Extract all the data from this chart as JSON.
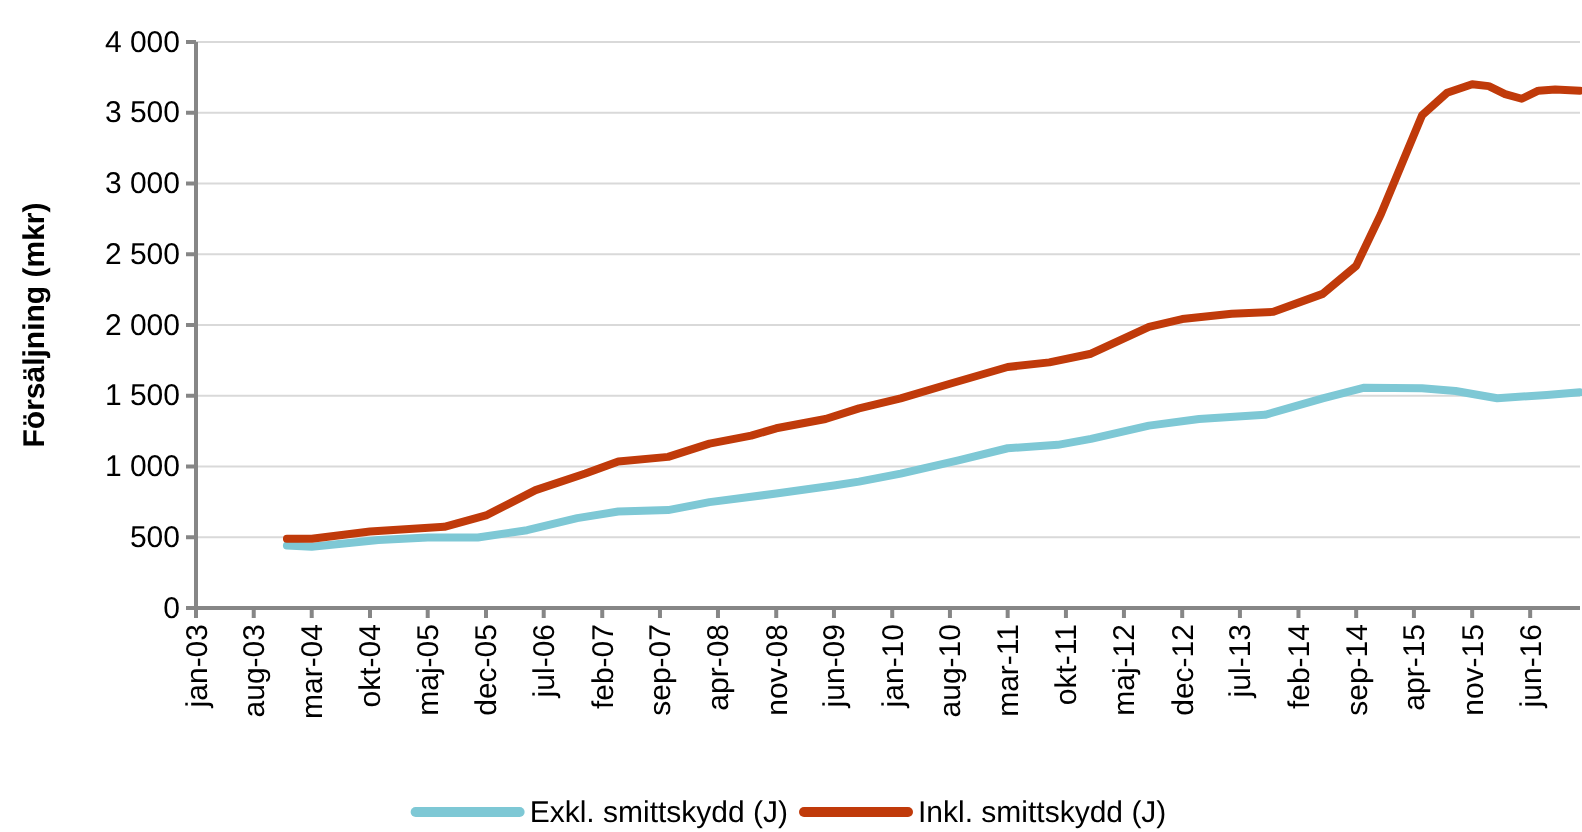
{
  "chart_data": {
    "type": "line",
    "ylabel": "Försäljning (mkr)",
    "xlim": [
      "2003-01",
      "2016-12"
    ],
    "ylim": [
      0,
      4000
    ],
    "yticks": [
      0,
      {
        "value": 500,
        "label": "500"
      },
      {
        "value": 1000,
        "label": "1 000"
      },
      {
        "value": 1500,
        "label": "1 500"
      },
      {
        "value": 2000,
        "label": "2 000"
      },
      {
        "value": 2500,
        "label": "2 500"
      },
      {
        "value": 3000,
        "label": "3 000"
      },
      {
        "value": 3500,
        "label": "3 500"
      },
      {
        "value": 4000,
        "label": "4 000"
      }
    ],
    "xticks": [
      {
        "value": "2003-01",
        "label": "jan-03"
      },
      {
        "value": "2003-08",
        "label": "aug-03"
      },
      {
        "value": "2004-03",
        "label": "mar-04"
      },
      {
        "value": "2004-10",
        "label": "okt-04"
      },
      {
        "value": "2005-05",
        "label": "maj-05"
      },
      {
        "value": "2005-12",
        "label": "dec-05"
      },
      {
        "value": "2006-07",
        "label": "jul-06"
      },
      {
        "value": "2007-02",
        "label": "feb-07"
      },
      {
        "value": "2007-09",
        "label": "sep-07"
      },
      {
        "value": "2008-04",
        "label": "apr-08"
      },
      {
        "value": "2008-11",
        "label": "nov-08"
      },
      {
        "value": "2009-06",
        "label": "jun-09"
      },
      {
        "value": "2010-01",
        "label": "jan-10"
      },
      {
        "value": "2010-08",
        "label": "aug-10"
      },
      {
        "value": "2011-03",
        "label": "mar-11"
      },
      {
        "value": "2011-10",
        "label": "okt-11"
      },
      {
        "value": "2012-05",
        "label": "maj-12"
      },
      {
        "value": "2012-12",
        "label": "dec-12"
      },
      {
        "value": "2013-07",
        "label": "jul-13"
      },
      {
        "value": "2014-02",
        "label": "feb-14"
      },
      {
        "value": "2014-09",
        "label": "sep-14"
      },
      {
        "value": "2015-04",
        "label": "apr-15"
      },
      {
        "value": "2015-11",
        "label": "nov-15"
      },
      {
        "value": "2016-06",
        "label": "jun-16"
      }
    ],
    "grid": "y",
    "legend": "bottom",
    "marker": "none",
    "line_style": "solid",
    "series": [
      {
        "name": "Exkl. smittskydd (J)",
        "color": "#7ec8d5",
        "x": [
          "2003-12",
          "2004-03",
          "2004-11",
          "2005-05",
          "2005-11",
          "2006-05",
          "2006-11",
          "2007-04",
          "2007-10",
          "2008-03",
          "2008-11",
          "2009-06",
          "2009-09",
          "2010-02",
          "2010-09",
          "2011-03",
          "2011-09",
          "2012-01",
          "2012-08",
          "2013-02",
          "2013-10",
          "2014-05",
          "2014-10",
          "2015-05",
          "2015-09",
          "2016-02",
          "2016-08",
          "2016-12"
        ],
        "values": [
          442,
          433,
          480,
          498,
          498,
          550,
          635,
          682,
          692,
          748,
          809,
          866,
          893,
          950,
          1044,
          1129,
          1153,
          1195,
          1289,
          1336,
          1365,
          1482,
          1557,
          1553,
          1534,
          1482,
          1506,
          1524
        ]
      },
      {
        "name": "Inkl. smittskydd (J)",
        "color": "#c03a0a",
        "x": [
          "2003-12",
          "2004-03",
          "2004-10",
          "2005-07",
          "2005-12",
          "2006-06",
          "2006-12",
          "2007-04",
          "2007-10",
          "2008-03",
          "2008-08",
          "2008-11",
          "2009-05",
          "2009-09",
          "2010-02",
          "2010-08",
          "2011-03",
          "2011-08",
          "2012-01",
          "2012-08",
          "2012-12",
          "2013-06",
          "2013-11",
          "2014-05",
          "2014-09",
          "2014-12",
          "2015-05",
          "2015-08",
          "2015-11",
          "2016-01",
          "2016-03",
          "2016-05",
          "2016-07",
          "2016-09",
          "2016-12"
        ],
        "values": [
          490,
          490,
          541,
          574,
          654,
          833,
          950,
          1035,
          1068,
          1162,
          1218,
          1270,
          1336,
          1411,
          1482,
          1585,
          1703,
          1736,
          1797,
          1986,
          2042,
          2079,
          2093,
          2220,
          2418,
          2785,
          3482,
          3641,
          3702,
          3688,
          3632,
          3599,
          3656,
          3665,
          3656
        ]
      }
    ]
  }
}
